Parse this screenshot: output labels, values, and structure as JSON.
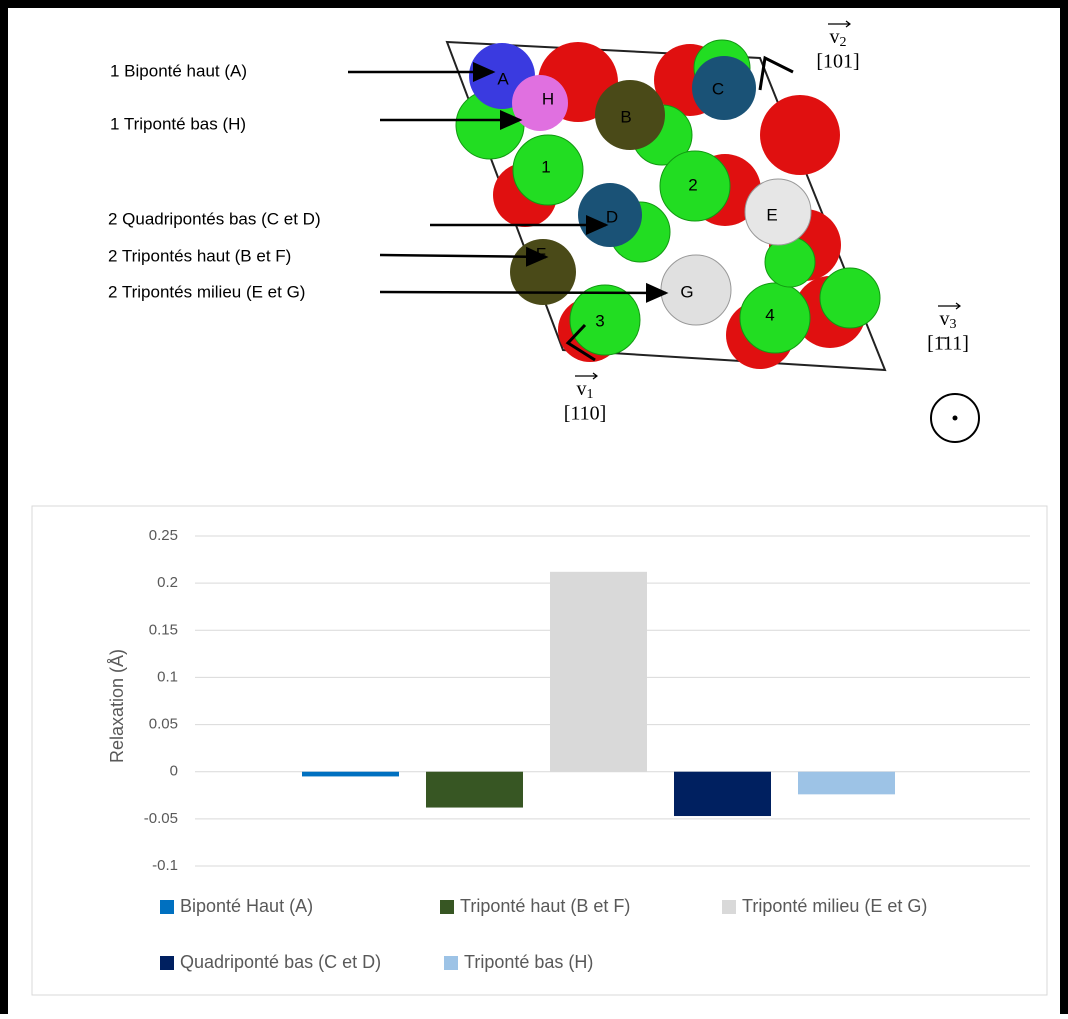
{
  "diagram": {
    "labels": [
      "1 Biponté haut (A)",
      "1 Triponté bas (H)",
      "2 Quadripontés bas (C et D)",
      "2 Tripontés haut (B et F)",
      "2 Tripontés milieu (E et G)"
    ],
    "atoms": [
      "A",
      "H",
      "B",
      "C",
      "1",
      "2",
      "D",
      "E",
      "F",
      "G",
      "3",
      "4"
    ],
    "vectors": [
      {
        "name": "v",
        "index": "2",
        "direction": "[101]"
      },
      {
        "name": "v",
        "index": "3",
        "direction": "[1̄11]"
      },
      {
        "name": "v",
        "index": "1",
        "direction": "[110]"
      }
    ]
  },
  "chart_data": {
    "type": "bar",
    "y_label": "Relaxation (Å)",
    "categories": [
      null
    ],
    "series": [
      {
        "name": "Biponté Haut (A)",
        "color": "#0070c0",
        "values": [
          -0.005
        ]
      },
      {
        "name": "Triponté haut (B et F)",
        "color": "#375623",
        "values": [
          -0.038
        ]
      },
      {
        "name": "Triponté milieu (E et G)",
        "color": "#d9d9d9",
        "values": [
          0.212
        ]
      },
      {
        "name": "Quadriponté bas (C et D)",
        "color": "#002060",
        "values": [
          -0.047
        ]
      },
      {
        "name": "Triponté bas (H)",
        "color": "#9dc3e6",
        "values": [
          -0.024
        ]
      }
    ],
    "ylim": [
      -0.1,
      0.25
    ],
    "yticks": [
      -0.1,
      -0.05,
      0,
      0.05,
      0.1,
      0.15,
      0.2,
      0.25
    ],
    "grid": true,
    "legend": "bottom"
  }
}
